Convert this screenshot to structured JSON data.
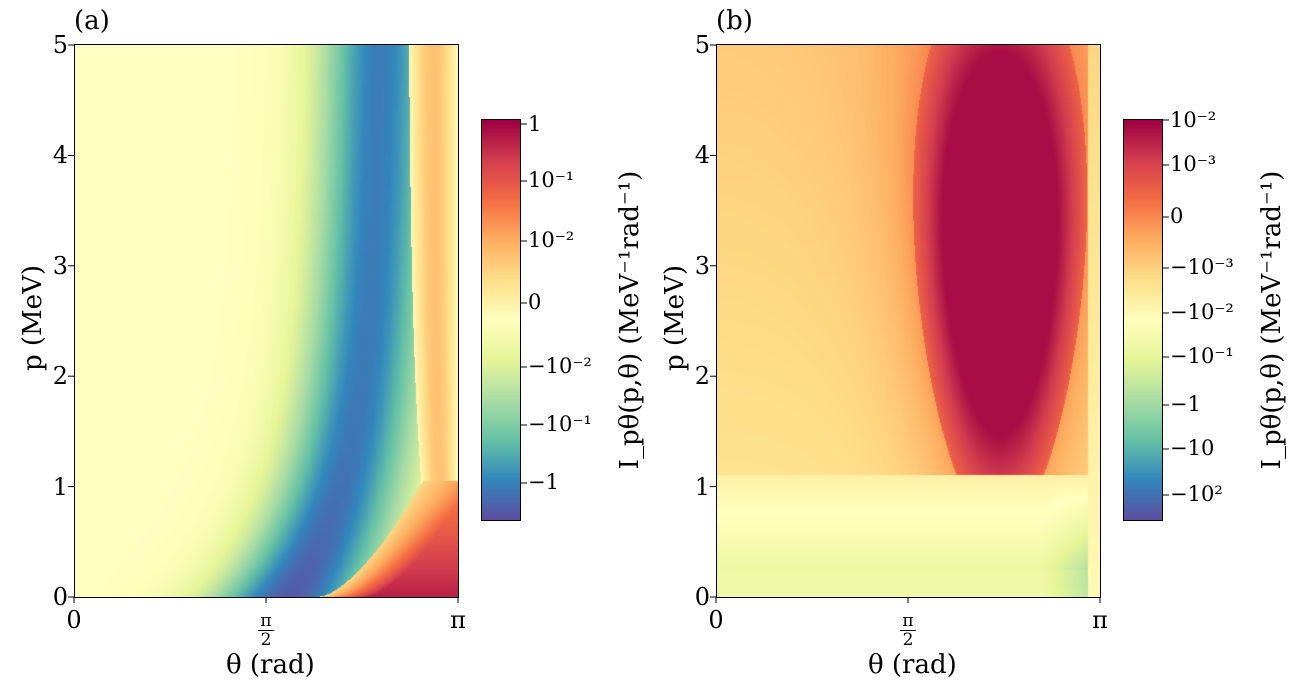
{
  "chart_data": [
    {
      "type": "heatmap",
      "panel_label": "(a)",
      "xlabel": "θ (rad)",
      "ylabel": "p (MeV)",
      "xlim": [
        0,
        3.14159
      ],
      "ylim": [
        0,
        5
      ],
      "x_ticks": [
        {
          "value": 0,
          "label": "0"
        },
        {
          "value": 1.5708,
          "label_num": "π",
          "label_den": "2"
        },
        {
          "value": 3.14159,
          "label": "π"
        }
      ],
      "y_ticks": [
        {
          "value": 0,
          "label": "0"
        },
        {
          "value": 1,
          "label": "1"
        },
        {
          "value": 2,
          "label": "2"
        },
        {
          "value": 3,
          "label": "3"
        },
        {
          "value": 4,
          "label": "4"
        },
        {
          "value": 5,
          "label": "5"
        }
      ],
      "colormap": "Spectral_r",
      "colorbar": {
        "label": "I_pθ(p,θ) (MeV⁻¹rad⁻¹)",
        "scale": "symlog",
        "ticks": [
          "1",
          "10⁻¹",
          "10⁻²",
          "0",
          "−10⁻²",
          "−10⁻¹",
          "−1"
        ]
      }
    },
    {
      "type": "heatmap",
      "panel_label": "(b)",
      "xlabel": "θ (rad)",
      "ylabel": "p (MeV)",
      "xlim": [
        0,
        3.14159
      ],
      "ylim": [
        0,
        5
      ],
      "x_ticks": [
        {
          "value": 0,
          "label": "0"
        },
        {
          "value": 1.5708,
          "label_num": "π",
          "label_den": "2"
        },
        {
          "value": 3.14159,
          "label": "π"
        }
      ],
      "y_ticks": [
        {
          "value": 0,
          "label": "0"
        },
        {
          "value": 1,
          "label": "1"
        },
        {
          "value": 2,
          "label": "2"
        },
        {
          "value": 3,
          "label": "3"
        },
        {
          "value": 4,
          "label": "4"
        },
        {
          "value": 5,
          "label": "5"
        }
      ],
      "colormap": "Spectral_r",
      "colorbar": {
        "label": "I_pθ(p,θ) (MeV⁻¹rad⁻¹)",
        "scale": "symlog",
        "ticks": [
          "10⁻²",
          "10⁻³",
          "0",
          "−10⁻³",
          "−10⁻²",
          "−10⁻¹",
          "−1",
          "−10",
          "−10²"
        ]
      }
    }
  ]
}
